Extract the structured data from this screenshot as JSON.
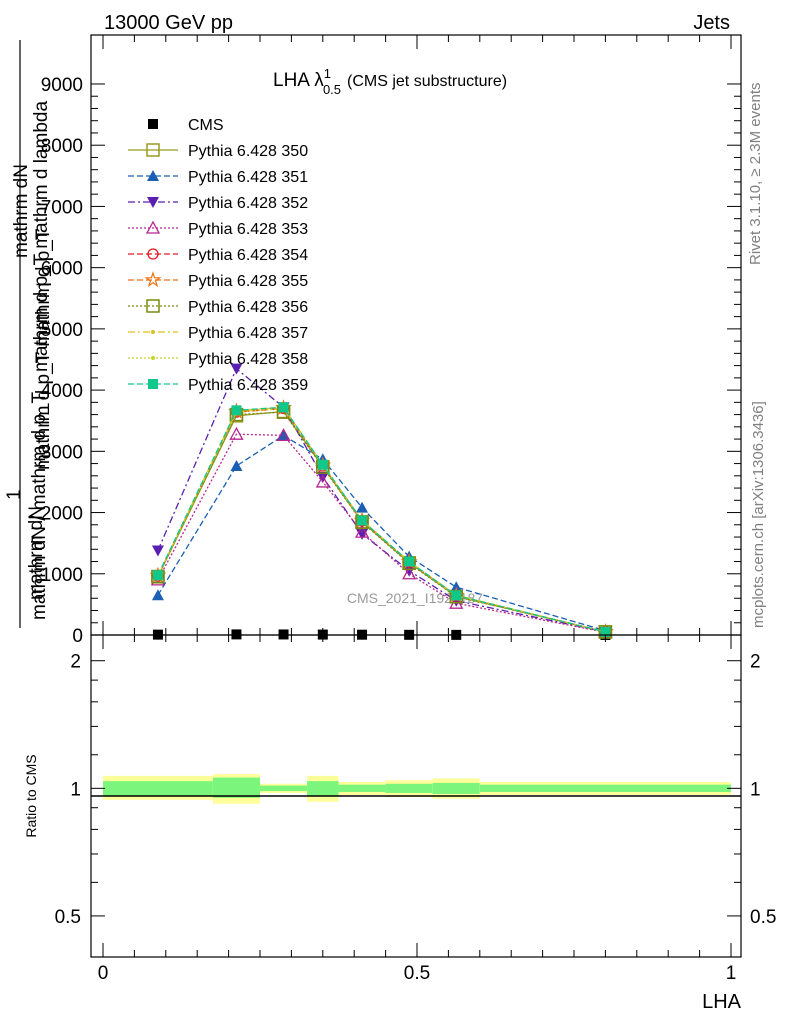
{
  "header": {
    "left": "13000 GeV pp",
    "right": "Jets"
  },
  "plot_title": {
    "main": "LHA λ",
    "sup": "1",
    "sub": "0.5",
    "suffix": "(CMS jet substructure)"
  },
  "side_labels": {
    "rivet": "Rivet 3.1.10, ≥ 2.3M events",
    "mcplots": "mcplots.cern.ch [arXiv:1306.3436]"
  },
  "watermark": "CMS_2021_I1920187",
  "y_title_main": {
    "line1": "mathrm dN",
    "line2": "mathrm d p_T mathrm d lambda",
    "line3": "mathrm d p_T mathrm d p_T",
    "line4": "1",
    "line5": "mathrm dN / mathrm d p_T",
    "line6": "mathrm dN"
  },
  "ratio_ylabel": "Ratio to CMS",
  "x_label": "LHA",
  "colors": {
    "band_inner": "#7cf57c",
    "band_outer": "#ffff99"
  },
  "chart_data": [
    {
      "type": "line",
      "panel": "main",
      "xlim": [
        0,
        1
      ],
      "ylim": [
        0,
        9800
      ],
      "yticks": [
        0,
        1000,
        2000,
        3000,
        4000,
        5000,
        6000,
        7000,
        8000,
        9000
      ],
      "ytick_labels": [
        "0",
        "1000",
        "2000",
        "3000",
        "4000",
        "5000",
        "6000",
        "7000",
        "8000",
        "9000"
      ],
      "x": [
        0.0875,
        0.2125,
        0.2875,
        0.35,
        0.4125,
        0.4875,
        0.5625,
        0.8
      ],
      "series": [
        {
          "name": "CMS",
          "color": "#000000",
          "marker": "square-filled",
          "dash": "none",
          "values": [
            6,
            10,
            9,
            7,
            5,
            3,
            2,
            0.5
          ]
        },
        {
          "name": "Pythia 6.428 350",
          "color": "#9a9a20",
          "marker": "square-open",
          "dash": "solid",
          "values": [
            950,
            3580,
            3650,
            2750,
            1850,
            1180,
            630,
            50
          ]
        },
        {
          "name": "Pythia 6.428 351",
          "color": "#1a5fb4",
          "marker": "triangle-up-filled",
          "dash": "6,3",
          "values": [
            650,
            2760,
            3260,
            2870,
            2080,
            1280,
            780,
            70
          ]
        },
        {
          "name": "Pythia 6.428 352",
          "color": "#5a1fb0",
          "marker": "triangle-down-filled",
          "dash": "7,3,2,3",
          "values": [
            1380,
            4350,
            3720,
            2580,
            1650,
            1050,
            560,
            50
          ]
        },
        {
          "name": "Pythia 6.428 353",
          "color": "#b5268f",
          "marker": "triangle-up-open",
          "dash": "2,2",
          "values": [
            900,
            3280,
            3260,
            2500,
            1680,
            1000,
            520,
            45
          ]
        },
        {
          "name": "Pythia 6.428 354",
          "color": "#e01b24",
          "marker": "circle-open",
          "dash": "6,3",
          "values": [
            960,
            3640,
            3700,
            2760,
            1860,
            1190,
            640,
            50
          ]
        },
        {
          "name": "Pythia 6.428 355",
          "color": "#f07010",
          "marker": "star-open",
          "dash": "6,3",
          "values": [
            970,
            3650,
            3710,
            2770,
            1870,
            1195,
            645,
            50
          ]
        },
        {
          "name": "Pythia 6.428 356",
          "color": "#7a8a10",
          "marker": "square-open",
          "dash": "2,2",
          "values": [
            955,
            3600,
            3640,
            2740,
            1840,
            1170,
            625,
            50
          ]
        },
        {
          "name": "Pythia 6.428 357",
          "color": "#e0c020",
          "marker": "dot",
          "dash": "7,3,2,3",
          "values": [
            965,
            3660,
            3720,
            2780,
            1875,
            1200,
            650,
            50
          ]
        },
        {
          "name": "Pythia 6.428 358",
          "color": "#c8d428",
          "marker": "dot",
          "dash": "2,2",
          "values": [
            960,
            3640,
            3700,
            2770,
            1865,
            1195,
            640,
            50
          ]
        },
        {
          "name": "Pythia 6.428 359",
          "color": "#10c88a",
          "marker": "square-filled",
          "dash": "6,3",
          "values": [
            975,
            3670,
            3720,
            2780,
            1870,
            1200,
            645,
            50
          ]
        }
      ],
      "legend_placement": "top-left"
    },
    {
      "type": "area",
      "panel": "ratio",
      "xlim": [
        0,
        1
      ],
      "ylim": [
        0.4,
        2.3
      ],
      "yscale": "log",
      "yticks": [
        0.5,
        1,
        2
      ],
      "ytick_labels": [
        "0.5",
        "1",
        "2"
      ],
      "xticks": [
        0,
        0.5,
        1
      ],
      "xtick_labels": [
        "0",
        "0.5",
        "1"
      ],
      "bin_edges": [
        0,
        0.175,
        0.25,
        0.325,
        0.375,
        0.45,
        0.525,
        0.6,
        1.0
      ],
      "inner_band": [
        [
          0.96,
          1.04
        ],
        [
          0.95,
          1.06
        ],
        [
          0.985,
          1.015
        ],
        [
          0.96,
          1.04
        ],
        [
          0.98,
          1.02
        ],
        [
          0.975,
          1.025
        ],
        [
          0.97,
          1.03
        ],
        [
          0.98,
          1.02
        ]
      ],
      "outer_band": [
        [
          0.94,
          1.07
        ],
        [
          0.92,
          1.08
        ],
        [
          0.975,
          1.025
        ],
        [
          0.93,
          1.07
        ],
        [
          0.965,
          1.035
        ],
        [
          0.955,
          1.045
        ],
        [
          0.945,
          1.055
        ],
        [
          0.965,
          1.035
        ]
      ],
      "reference": 1
    }
  ]
}
